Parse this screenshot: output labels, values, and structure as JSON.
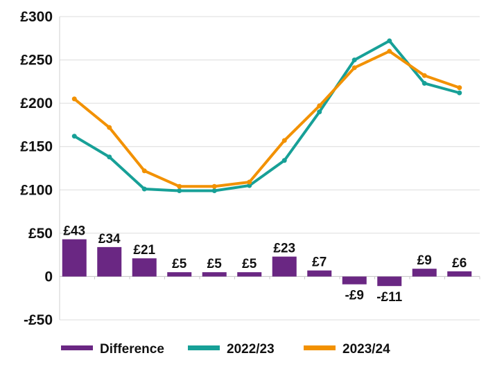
{
  "chart_data": {
    "type": "bar+line",
    "title": "",
    "xlabel": "",
    "ylabel": "",
    "ylim": [
      -50,
      300
    ],
    "yticks": [
      -50,
      0,
      50,
      100,
      150,
      200,
      250,
      300
    ],
    "ytick_labels": [
      "-£50",
      "0",
      "£50",
      "£100",
      "£150",
      "£200",
      "£250",
      "£300"
    ],
    "grid": true,
    "legend_position": "bottom",
    "categories_count": 12,
    "series": [
      {
        "name": "Difference",
        "kind": "bar",
        "color": "#6a2783",
        "values": [
          43,
          34,
          21,
          5,
          5,
          5,
          23,
          7,
          -9,
          -11,
          9,
          6
        ],
        "labels": [
          "£43",
          "£34",
          "£21",
          "£5",
          "£5",
          "£5",
          "£23",
          "£7",
          "-£9",
          "-£11",
          "£9",
          "£6"
        ]
      },
      {
        "name": "2022/23",
        "kind": "line",
        "color": "#17a097",
        "values": [
          162,
          138,
          101,
          99,
          99,
          105,
          134,
          190,
          250,
          272,
          223,
          212
        ]
      },
      {
        "name": "2023/24",
        "kind": "line",
        "color": "#f29100",
        "values": [
          205,
          172,
          122,
          104,
          104,
          109,
          157,
          197,
          241,
          260,
          232,
          218
        ]
      }
    ]
  }
}
